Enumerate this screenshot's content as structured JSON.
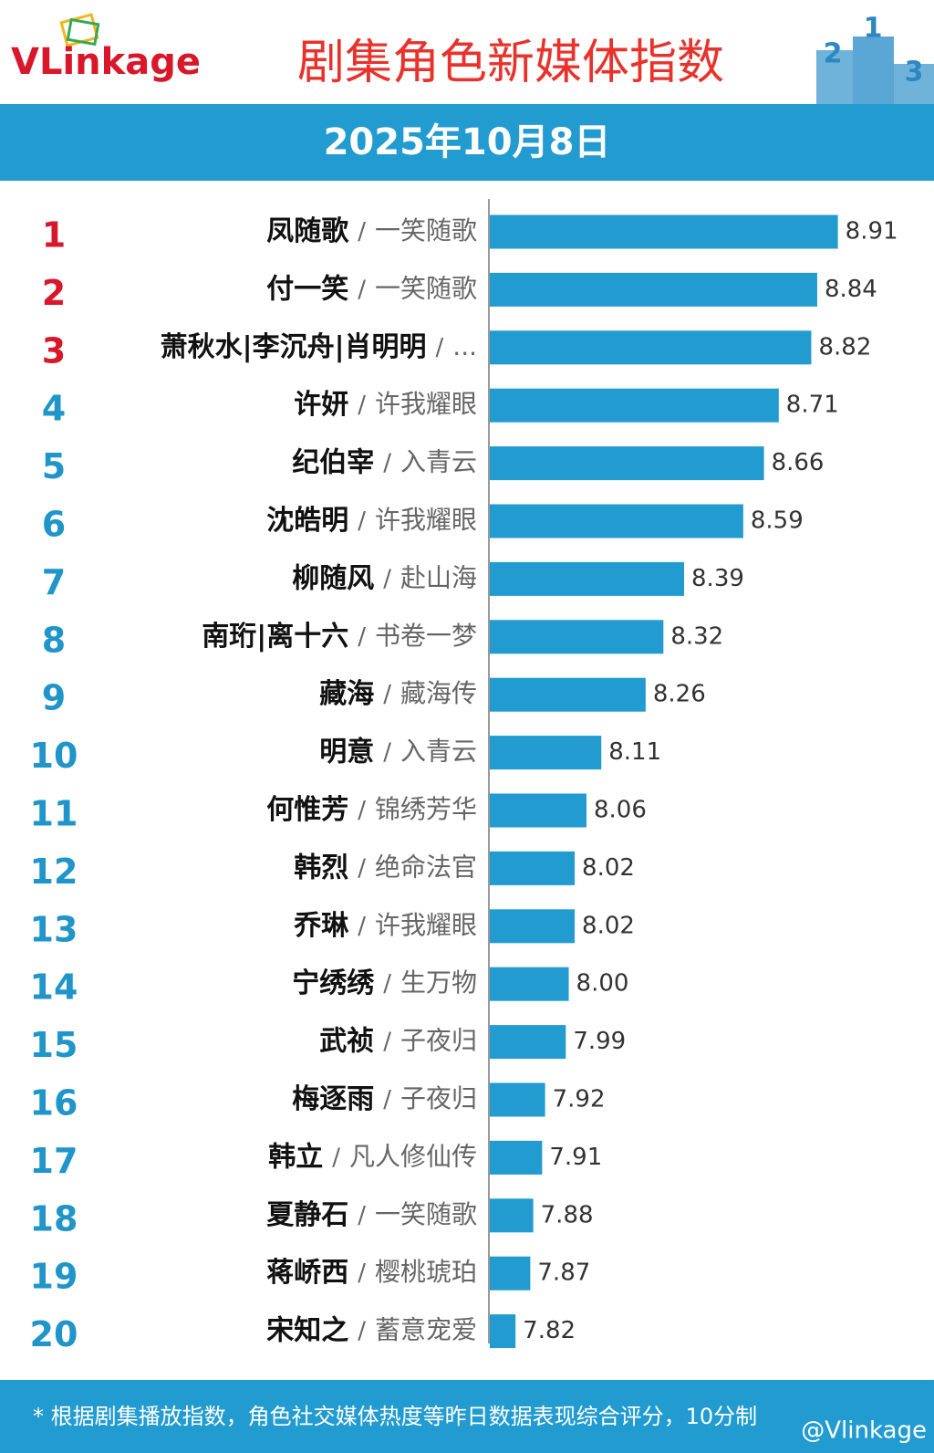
{
  "logo": "VLinkage",
  "podium": [
    "2",
    "1",
    "3"
  ],
  "footer": {
    "note": "* 根据剧集播放指数，角色社交媒体热度等昨日数据表现综合评分，10分制",
    "watermark": "@Vlinkage"
  },
  "chart_data": {
    "type": "bar",
    "orientation": "horizontal",
    "title": "剧集角色新媒体指数",
    "subtitle": "2025年10月8日",
    "ranks": [
      "1",
      "2",
      "3",
      "4",
      "5",
      "6",
      "7",
      "8",
      "9",
      "10",
      "11",
      "12",
      "13",
      "14",
      "15",
      "16",
      "17",
      "18",
      "19",
      "20"
    ],
    "categories": [
      "凤随歌",
      "付一笑",
      "萧秋水|李沉舟|肖明明",
      "许妍",
      "纪伯宰",
      "沈皓明",
      "柳随风",
      "南珩|离十六",
      "藏海",
      "明意",
      "何惟芳",
      "韩烈",
      "乔琳",
      "宁绣绣",
      "武祯",
      "梅逐雨",
      "韩立",
      "夏静石",
      "蒋峤西",
      "宋知之"
    ],
    "separator": "/",
    "dramas": [
      "一笑随歌",
      "一笑随歌",
      "...",
      "许我耀眼",
      "入青云",
      "许我耀眼",
      "赴山海",
      "书卷一梦",
      "藏海传",
      "入青云",
      "锦绣芳华",
      "绝命法官",
      "许我耀眼",
      "生万物",
      "子夜归",
      "子夜归",
      "凡人修仙传",
      "一笑随歌",
      "樱桃琥珀",
      "蓄意宠爱"
    ],
    "values": [
      8.91,
      8.84,
      8.82,
      8.71,
      8.66,
      8.59,
      8.39,
      8.32,
      8.26,
      8.11,
      8.06,
      8.02,
      8.02,
      8.0,
      7.99,
      7.92,
      7.91,
      7.88,
      7.87,
      7.82
    ],
    "value_labels": [
      "8.91",
      "8.84",
      "8.82",
      "8.71",
      "8.66",
      "8.59",
      "8.39",
      "8.32",
      "8.26",
      "8.11",
      "8.06",
      "8.02",
      "8.02",
      "8.00",
      "7.99",
      "7.92",
      "7.91",
      "7.88",
      "7.87",
      "7.82"
    ],
    "xlim": [
      7.73,
      9.13
    ],
    "color": "#229bd0",
    "top_rank_color": "#d8182a",
    "rank_color": "#1f95c9"
  }
}
